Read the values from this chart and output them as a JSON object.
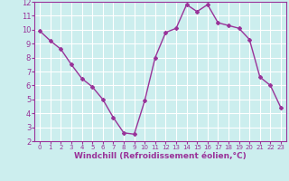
{
  "x": [
    0,
    1,
    2,
    3,
    4,
    5,
    6,
    7,
    8,
    9,
    10,
    11,
    12,
    13,
    14,
    15,
    16,
    17,
    18,
    19,
    20,
    21,
    22,
    23
  ],
  "y": [
    9.9,
    9.2,
    8.6,
    7.5,
    6.5,
    5.9,
    5.0,
    3.7,
    2.6,
    2.5,
    4.9,
    8.0,
    9.8,
    10.1,
    11.8,
    11.3,
    11.8,
    10.5,
    10.3,
    10.1,
    9.3,
    6.6,
    6.0,
    4.4
  ],
  "line_color": "#993399",
  "marker": "D",
  "marker_size": 2,
  "bg_color": "#cceeee",
  "grid_color": "#ffffff",
  "xlabel": "Windchill (Refroidissement éolien,°C)",
  "xlabel_color": "#993399",
  "tick_color": "#993399",
  "ylim": [
    2,
    12
  ],
  "xlim_min": -0.5,
  "xlim_max": 23.5,
  "yticks": [
    2,
    3,
    4,
    5,
    6,
    7,
    8,
    9,
    10,
    11,
    12
  ],
  "xticks": [
    0,
    1,
    2,
    3,
    4,
    5,
    6,
    7,
    8,
    9,
    10,
    11,
    12,
    13,
    14,
    15,
    16,
    17,
    18,
    19,
    20,
    21,
    22,
    23
  ],
  "linewidth": 1.0,
  "xlabel_fontsize": 6.5,
  "tick_fontsize_x": 5,
  "tick_fontsize_y": 6
}
